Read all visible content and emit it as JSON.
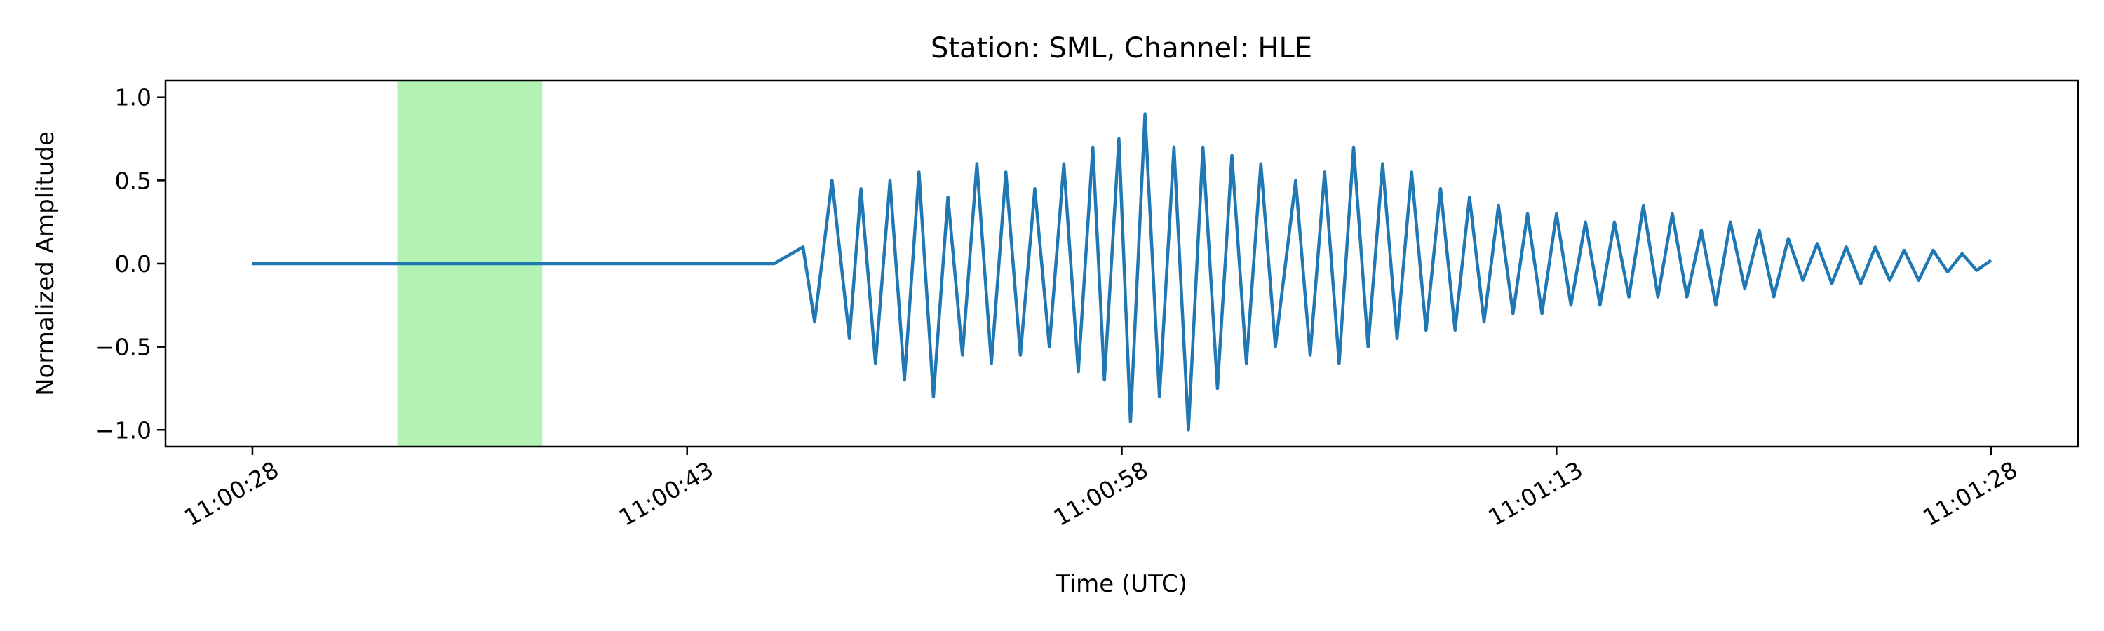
{
  "chart_data": {
    "type": "line",
    "title": "Station: SML, Channel: HLE",
    "xlabel": "Time (UTC)",
    "ylabel": "Normalized Amplitude",
    "x_unit": "time (UTC)",
    "xlim": [
      "11:00:25",
      "11:01:31"
    ],
    "ylim": [
      -1.1,
      1.1
    ],
    "x_ticks": [
      "11:00:28",
      "11:00:43",
      "11:00:58",
      "11:01:13",
      "11:01:28"
    ],
    "y_ticks": [
      "1.0",
      "0.5",
      "0.0",
      "−0.5",
      "−1.0"
    ],
    "y_tick_values": [
      1.0,
      0.5,
      0.0,
      -0.5,
      -1.0
    ],
    "grid": false,
    "highlight_span": {
      "start": "11:00:33",
      "end": "11:00:38",
      "color": "#b2f2b2"
    },
    "series": [
      {
        "color": "#1f77b4",
        "x": [
          "11:00:28",
          "11:00:30",
          "11:00:32",
          "11:00:34",
          "11:00:36",
          "11:00:38",
          "11:00:40",
          "11:00:42",
          "11:00:44",
          "11:00:46",
          "11:00:47",
          "11:00:47.4",
          "11:00:48",
          "11:00:48.6",
          "11:00:49",
          "11:00:49.5",
          "11:00:50",
          "11:00:50.5",
          "11:00:51",
          "11:00:51.5",
          "11:00:52",
          "11:00:52.5",
          "11:00:53",
          "11:00:53.5",
          "11:00:54",
          "11:00:54.5",
          "11:00:55",
          "11:00:55.5",
          "11:00:56",
          "11:00:56.5",
          "11:00:57",
          "11:00:57.4",
          "11:00:57.9",
          "11:00:58.3",
          "11:00:58.8",
          "11:00:59.3",
          "11:00:59.8",
          "11:01:00.3",
          "11:01:00.8",
          "11:01:01.3",
          "11:01:01.8",
          "11:01:02.3",
          "11:01:02.8",
          "11:01:03.3",
          "11:01:04",
          "11:01:04.5",
          "11:01:05",
          "11:01:05.5",
          "11:01:06",
          "11:01:06.5",
          "11:01:07",
          "11:01:07.5",
          "11:01:08",
          "11:01:08.5",
          "11:01:09",
          "11:01:09.5",
          "11:01:10",
          "11:01:10.5",
          "11:01:11",
          "11:01:11.5",
          "11:01:12",
          "11:01:12.5",
          "11:01:13",
          "11:01:13.5",
          "11:01:14",
          "11:01:14.5",
          "11:01:15",
          "11:01:15.5",
          "11:01:16",
          "11:01:16.5",
          "11:01:17",
          "11:01:17.5",
          "11:01:18",
          "11:01:18.5",
          "11:01:19",
          "11:01:19.5",
          "11:01:20",
          "11:01:20.5",
          "11:01:21",
          "11:01:21.5",
          "11:01:22",
          "11:01:22.5",
          "11:01:23",
          "11:01:23.5",
          "11:01:24",
          "11:01:24.5",
          "11:01:25",
          "11:01:25.5",
          "11:01:26",
          "11:01:26.5",
          "11:01:27",
          "11:01:27.5",
          "11:01:28"
        ],
        "y": [
          0,
          0,
          0,
          0,
          0,
          0,
          0,
          0,
          0,
          0,
          0.1,
          -0.35,
          0.5,
          -0.45,
          0.45,
          -0.6,
          0.5,
          -0.7,
          0.55,
          -0.8,
          0.4,
          -0.55,
          0.6,
          -0.6,
          0.55,
          -0.55,
          0.45,
          -0.5,
          0.6,
          -0.65,
          0.7,
          -0.7,
          0.75,
          -0.95,
          0.9,
          -0.8,
          0.7,
          -1.0,
          0.7,
          -0.75,
          0.65,
          -0.6,
          0.6,
          -0.5,
          0.5,
          -0.55,
          0.55,
          -0.6,
          0.7,
          -0.5,
          0.6,
          -0.45,
          0.55,
          -0.4,
          0.45,
          -0.4,
          0.4,
          -0.35,
          0.35,
          -0.3,
          0.3,
          -0.3,
          0.3,
          -0.25,
          0.25,
          -0.25,
          0.25,
          -0.2,
          0.35,
          -0.2,
          0.3,
          -0.2,
          0.2,
          -0.25,
          0.25,
          -0.15,
          0.2,
          -0.2,
          0.15,
          -0.1,
          0.12,
          -0.12,
          0.1,
          -0.12,
          0.1,
          -0.1,
          0.08,
          -0.1,
          0.08,
          -0.05,
          0.06,
          -0.04,
          0.02
        ]
      }
    ]
  }
}
